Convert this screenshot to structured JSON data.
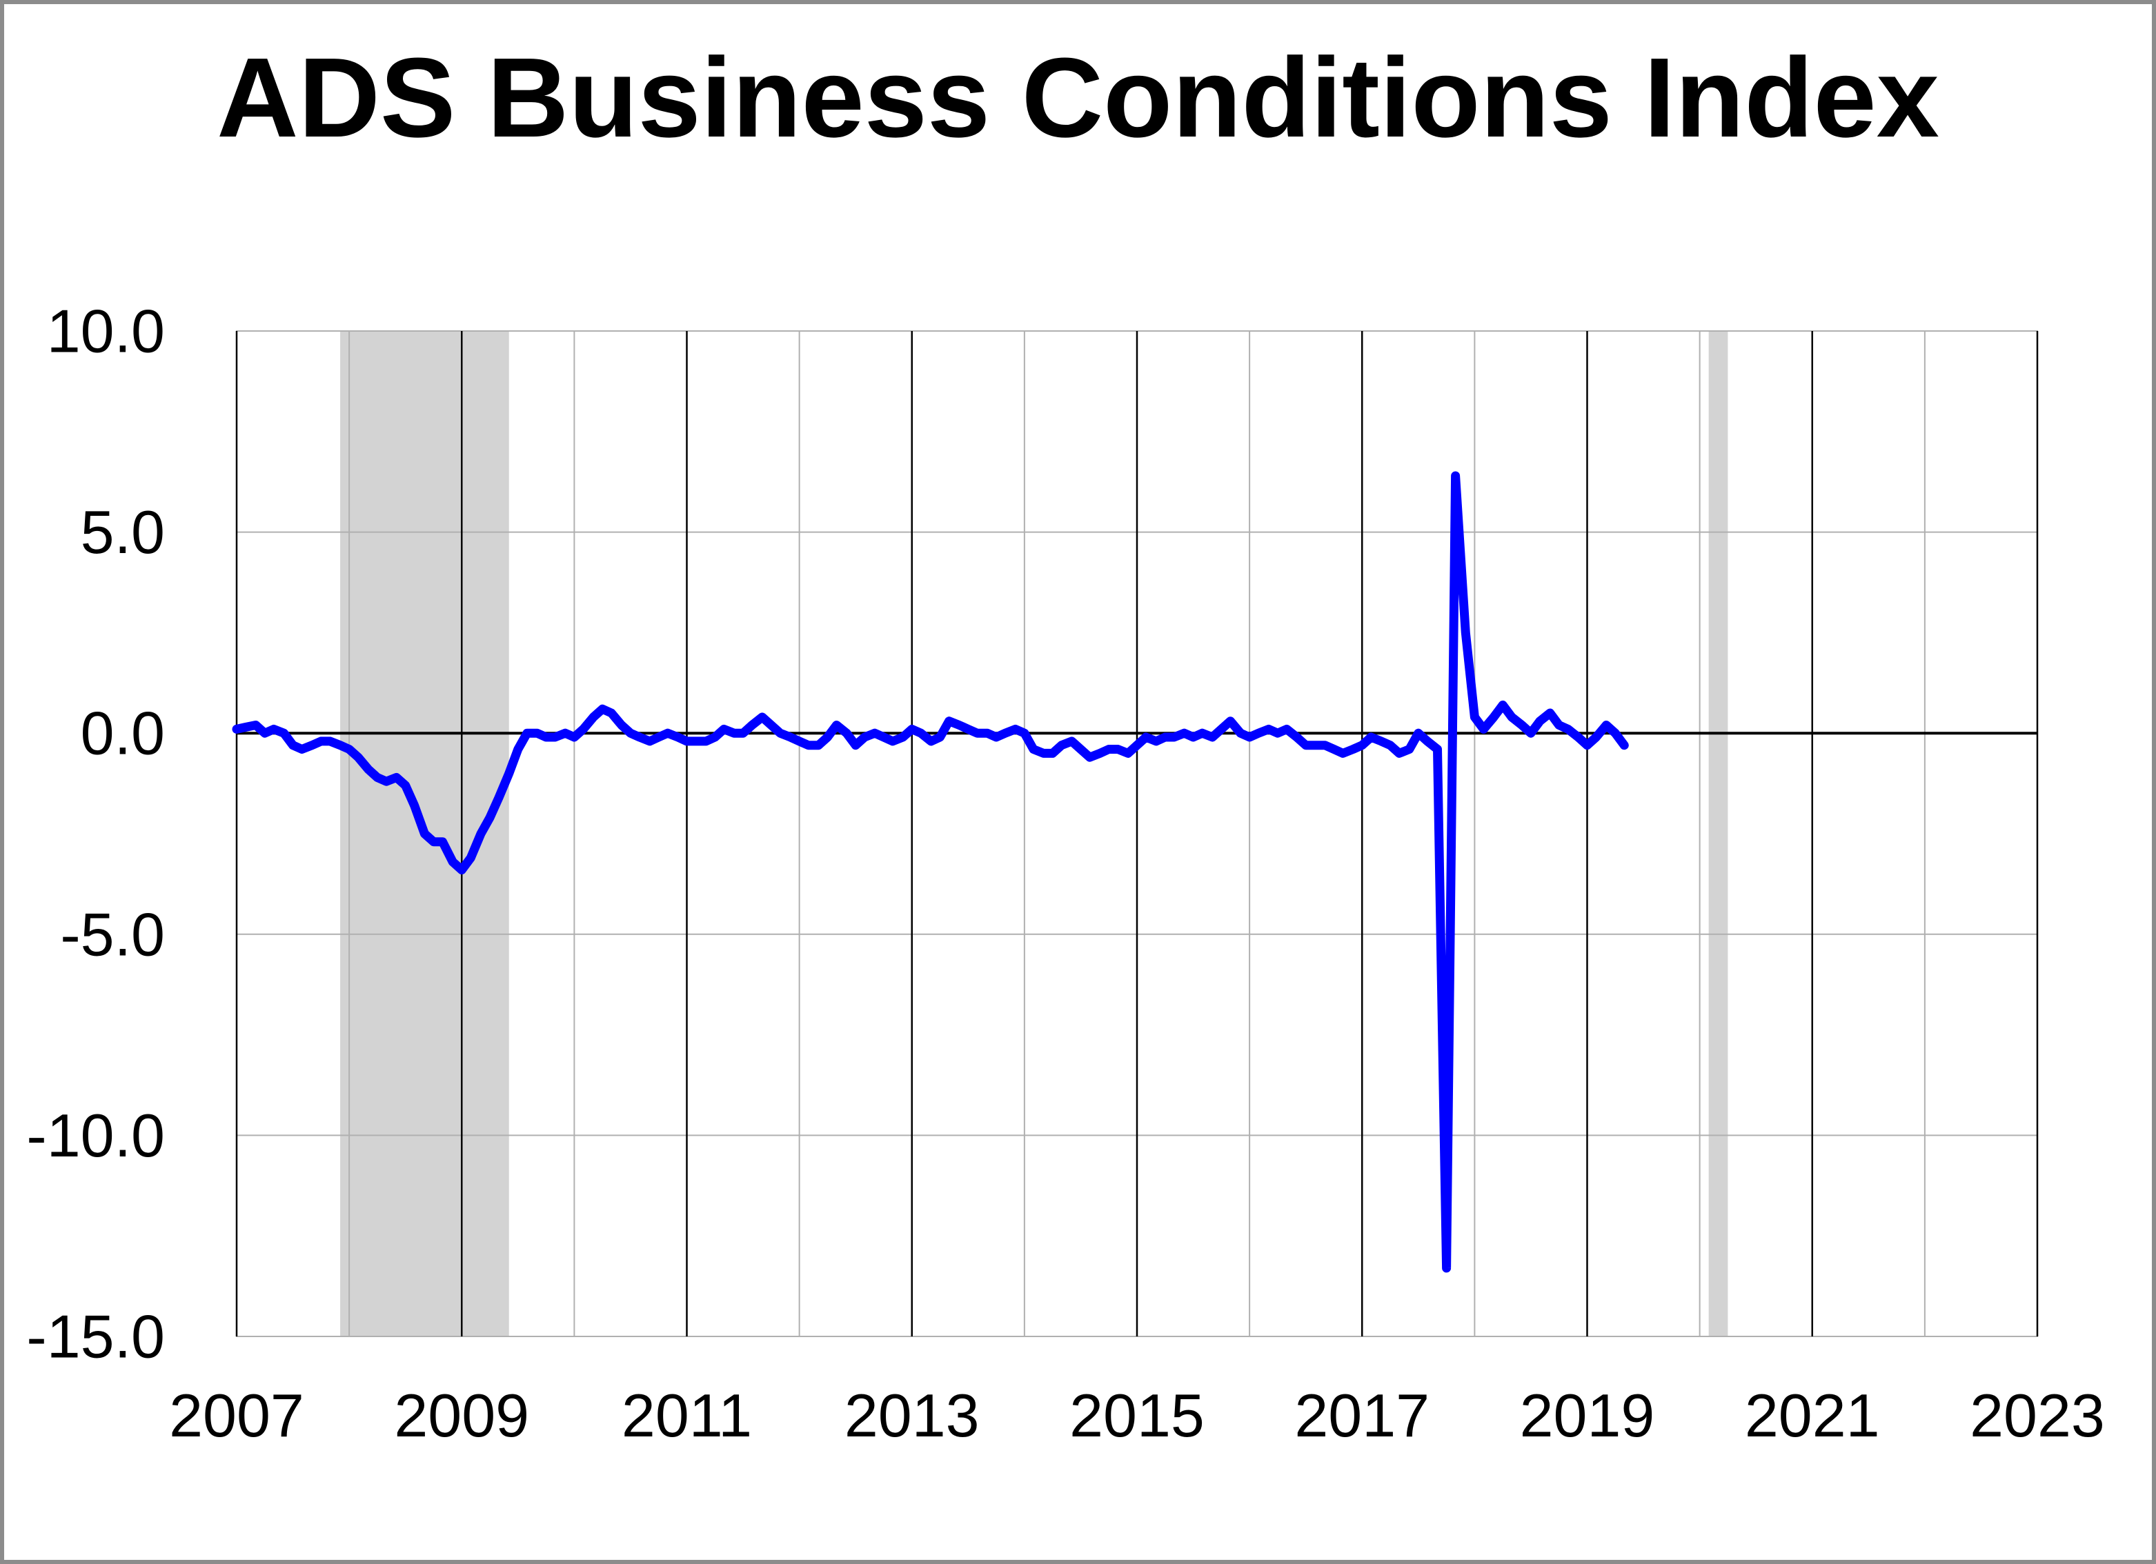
{
  "chart_data": {
    "type": "line",
    "title": "ADS Business Conditions Index",
    "xlabel": "",
    "ylabel": "",
    "xlim": [
      2007.0,
      2023.0
    ],
    "ylim": [
      -15.0,
      10.0
    ],
    "y_ticks": [
      "10.0",
      "5.0",
      "0.0",
      "-5.0",
      "-10.0",
      "-15.0"
    ],
    "y_tick_values": [
      10,
      5,
      0,
      -5,
      -10,
      -15
    ],
    "x_ticks": [
      "2007",
      "2009",
      "2011",
      "2013",
      "2015",
      "2017",
      "2019",
      "2021",
      "2023"
    ],
    "x_tick_values": [
      2007,
      2009,
      2011,
      2013,
      2015,
      2017,
      2019,
      2021,
      2023
    ],
    "grid": true,
    "legend": "none",
    "colors": {
      "line": "#0000ff",
      "recession_shade": "#d3d3d3",
      "zero_line": "#000000",
      "major_grid": "#000000",
      "minor_grid": "#b0b0b0",
      "frame_border": "#8c8c8c"
    },
    "recessions": [
      {
        "start": 2007.92,
        "end": 2009.42
      },
      {
        "start": 2020.08,
        "end": 2020.25
      }
    ],
    "series": [
      {
        "values": [
          [
            2007.0,
            0.1
          ],
          [
            2007.08,
            0.15
          ],
          [
            2007.17,
            0.2
          ],
          [
            2007.25,
            0.0
          ],
          [
            2007.33,
            0.1
          ],
          [
            2007.42,
            0.0
          ],
          [
            2007.5,
            -0.3
          ],
          [
            2007.58,
            -0.4
          ],
          [
            2007.67,
            -0.3
          ],
          [
            2007.75,
            -0.2
          ],
          [
            2007.83,
            -0.2
          ],
          [
            2007.92,
            -0.3
          ],
          [
            2008.0,
            -0.4
          ],
          [
            2008.08,
            -0.6
          ],
          [
            2008.17,
            -0.9
          ],
          [
            2008.25,
            -1.1
          ],
          [
            2008.33,
            -1.2
          ],
          [
            2008.42,
            -1.1
          ],
          [
            2008.5,
            -1.3
          ],
          [
            2008.58,
            -1.8
          ],
          [
            2008.67,
            -2.5
          ],
          [
            2008.75,
            -2.7
          ],
          [
            2008.83,
            -2.7
          ],
          [
            2008.92,
            -3.2
          ],
          [
            2009.0,
            -3.4
          ],
          [
            2009.08,
            -3.1
          ],
          [
            2009.17,
            -2.5
          ],
          [
            2009.25,
            -2.1
          ],
          [
            2009.33,
            -1.6
          ],
          [
            2009.42,
            -1.0
          ],
          [
            2009.5,
            -0.4
          ],
          [
            2009.58,
            0.0
          ],
          [
            2009.67,
            0.0
          ],
          [
            2009.75,
            -0.1
          ],
          [
            2009.83,
            -0.1
          ],
          [
            2009.92,
            0.0
          ],
          [
            2010.0,
            -0.1
          ],
          [
            2010.08,
            0.1
          ],
          [
            2010.17,
            0.4
          ],
          [
            2010.25,
            0.6
          ],
          [
            2010.33,
            0.5
          ],
          [
            2010.42,
            0.2
          ],
          [
            2010.5,
            0.0
          ],
          [
            2010.58,
            -0.1
          ],
          [
            2010.67,
            -0.2
          ],
          [
            2010.75,
            -0.1
          ],
          [
            2010.83,
            0.0
          ],
          [
            2010.92,
            -0.1
          ],
          [
            2011.0,
            -0.2
          ],
          [
            2011.08,
            -0.2
          ],
          [
            2011.17,
            -0.2
          ],
          [
            2011.25,
            -0.1
          ],
          [
            2011.33,
            0.1
          ],
          [
            2011.42,
            0.0
          ],
          [
            2011.5,
            0.0
          ],
          [
            2011.58,
            0.2
          ],
          [
            2011.67,
            0.4
          ],
          [
            2011.75,
            0.2
          ],
          [
            2011.83,
            0.0
          ],
          [
            2011.92,
            -0.1
          ],
          [
            2012.0,
            -0.2
          ],
          [
            2012.08,
            -0.3
          ],
          [
            2012.17,
            -0.3
          ],
          [
            2012.25,
            -0.1
          ],
          [
            2012.33,
            0.2
          ],
          [
            2012.42,
            0.0
          ],
          [
            2012.5,
            -0.3
          ],
          [
            2012.58,
            -0.1
          ],
          [
            2012.67,
            0.0
          ],
          [
            2012.75,
            -0.1
          ],
          [
            2012.83,
            -0.2
          ],
          [
            2012.92,
            -0.1
          ],
          [
            2013.0,
            0.1
          ],
          [
            2013.08,
            0.0
          ],
          [
            2013.17,
            -0.2
          ],
          [
            2013.25,
            -0.1
          ],
          [
            2013.33,
            0.3
          ],
          [
            2013.42,
            0.2
          ],
          [
            2013.5,
            0.1
          ],
          [
            2013.58,
            0.0
          ],
          [
            2013.67,
            0.0
          ],
          [
            2013.75,
            -0.1
          ],
          [
            2013.83,
            0.0
          ],
          [
            2013.92,
            0.1
          ],
          [
            2014.0,
            0.0
          ],
          [
            2014.08,
            -0.4
          ],
          [
            2014.17,
            -0.5
          ],
          [
            2014.25,
            -0.5
          ],
          [
            2014.33,
            -0.3
          ],
          [
            2014.42,
            -0.2
          ],
          [
            2014.5,
            -0.4
          ],
          [
            2014.58,
            -0.6
          ],
          [
            2014.67,
            -0.5
          ],
          [
            2014.75,
            -0.4
          ],
          [
            2014.83,
            -0.4
          ],
          [
            2014.92,
            -0.5
          ],
          [
            2015.0,
            -0.3
          ],
          [
            2015.08,
            -0.1
          ],
          [
            2015.17,
            -0.2
          ],
          [
            2015.25,
            -0.1
          ],
          [
            2015.33,
            -0.1
          ],
          [
            2015.42,
            0.0
          ],
          [
            2015.5,
            -0.1
          ],
          [
            2015.58,
            0.0
          ],
          [
            2015.67,
            -0.1
          ],
          [
            2015.75,
            0.1
          ],
          [
            2015.83,
            0.3
          ],
          [
            2015.92,
            0.0
          ],
          [
            2016.0,
            -0.1
          ],
          [
            2016.08,
            0.0
          ],
          [
            2016.17,
            0.1
          ],
          [
            2016.25,
            0.0
          ],
          [
            2016.33,
            0.1
          ],
          [
            2016.42,
            -0.1
          ],
          [
            2016.5,
            -0.3
          ],
          [
            2016.58,
            -0.3
          ],
          [
            2016.67,
            -0.3
          ],
          [
            2016.75,
            -0.4
          ],
          [
            2016.83,
            -0.5
          ],
          [
            2016.92,
            -0.4
          ],
          [
            2017.0,
            -0.3
          ],
          [
            2017.08,
            -0.1
          ],
          [
            2017.17,
            -0.2
          ],
          [
            2017.25,
            -0.3
          ],
          [
            2017.33,
            -0.5
          ],
          [
            2017.42,
            -0.4
          ],
          [
            2017.5,
            0.0
          ],
          [
            2017.58,
            -0.2
          ],
          [
            2017.67,
            -0.4
          ],
          [
            2017.75,
            -13.3
          ],
          [
            2017.83,
            6.4
          ],
          [
            2017.92,
            2.5
          ],
          [
            2018.0,
            0.4
          ],
          [
            2018.08,
            0.1
          ],
          [
            2018.17,
            0.4
          ],
          [
            2018.25,
            0.7
          ],
          [
            2018.33,
            0.4
          ],
          [
            2018.42,
            0.2
          ],
          [
            2018.5,
            0.0
          ],
          [
            2018.58,
            0.3
          ],
          [
            2018.67,
            0.5
          ],
          [
            2018.75,
            0.2
          ],
          [
            2018.83,
            0.1
          ],
          [
            2018.92,
            -0.1
          ],
          [
            2019.0,
            -0.3
          ],
          [
            2019.08,
            -0.1
          ],
          [
            2019.17,
            0.2
          ],
          [
            2019.25,
            0.0
          ],
          [
            2019.33,
            -0.3
          ]
        ]
      }
    ]
  }
}
